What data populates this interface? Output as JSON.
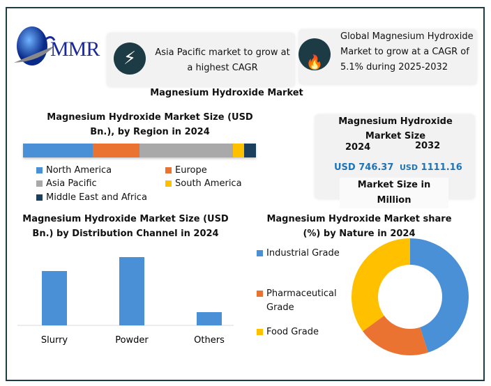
{
  "logo": {
    "text": "MMR"
  },
  "highlight_1": {
    "icon": "lightning-icon",
    "text": "Asia Pacific market to grow at a highest CAGR"
  },
  "highlight_2": {
    "icon": "flame-icon",
    "text": "Global Magnesium Hydroxide Market to grow at a CAGR of 5.1% during 2025-2032"
  },
  "main_title": "Magnesium Hydroxide Market",
  "market_size": {
    "title": "Magnesium Hydroxide Market Size",
    "year_1": "2024",
    "year_2": "2032",
    "value_1": "USD 746.37",
    "value_2_prefix": "USD",
    "value_2": "1111.16",
    "footer": "Market Size in Million",
    "value_color": "#1f73b7"
  },
  "chart_data": [
    {
      "type": "bar",
      "orientation": "horizontal-stacked",
      "title": "Magnesium Hydroxide Market  Size (USD Bn.), by Region in 2024",
      "series": [
        {
          "name": "North America",
          "value": 30,
          "color": "#4a90d6"
        },
        {
          "name": "Europe",
          "value": 20,
          "color": "#ea7331"
        },
        {
          "name": "Asia Pacific",
          "value": 40,
          "color": "#a9a9a9"
        },
        {
          "name": "South America",
          "value": 5,
          "color": "#ffc000"
        },
        {
          "name": "Middle East and Africa",
          "value": 5,
          "color": "#1d3f5e"
        }
      ]
    },
    {
      "type": "bar",
      "title": "Magnesium Hydroxide Market Size (USD Bn.) by Distribution Channel in 2024",
      "categories": [
        "Slurry",
        "Powder",
        "Others"
      ],
      "values": [
        78,
        98,
        19
      ],
      "color": "#4a90d6",
      "ylim": [
        0,
        100
      ]
    },
    {
      "type": "pie",
      "variant": "donut",
      "title": "Magnesium Hydroxide Market share (%) by Nature in 2024",
      "categories": [
        "Industrial Grade",
        "Pharmaceutical Grade",
        "Food Grade"
      ],
      "values": [
        45,
        20,
        35
      ],
      "colors": [
        "#4a90d6",
        "#ea7331",
        "#ffc000"
      ],
      "legend": "left"
    }
  ]
}
